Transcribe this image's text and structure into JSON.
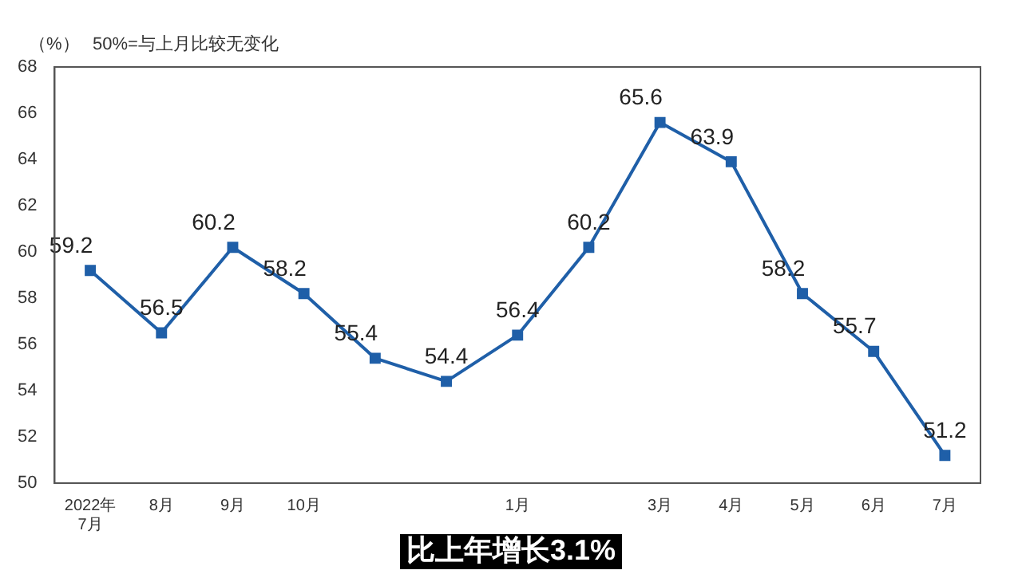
{
  "chart_data": {
    "type": "line",
    "ylabel": "（%）",
    "annotations": [
      "50%=与上月比较无变化",
      "比上年增长3.1%"
    ],
    "categories": [
      "2022年\n7月",
      "8月",
      "9月",
      "10月",
      null,
      null,
      "1月",
      null,
      "3月",
      "4月",
      "5月",
      "6月",
      "7月"
    ],
    "series": [
      {
        "color": "#1f5fa8",
        "values": [
          59.2,
          56.5,
          60.2,
          58.2,
          55.4,
          54.4,
          56.4,
          60.2,
          65.6,
          63.9,
          58.2,
          55.7,
          51.2
        ]
      }
    ],
    "ylim": [
      50,
      68
    ],
    "yticks": [
      50,
      52,
      54,
      56,
      58,
      60,
      62,
      64,
      66,
      68
    ],
    "grid": false,
    "legend": false,
    "marker": "square",
    "line_style": "solid",
    "data_labels": true
  }
}
